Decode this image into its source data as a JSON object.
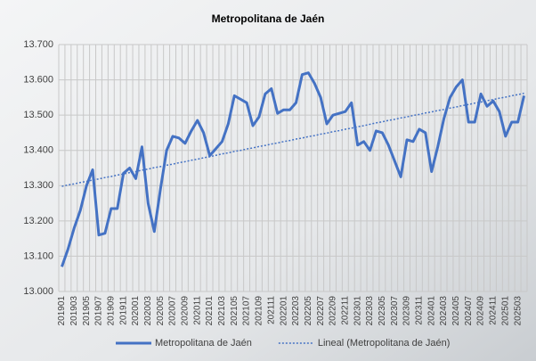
{
  "chart_data": {
    "type": "line",
    "title": "Metropolitana de Jaén",
    "categories": [
      "201901",
      null,
      "201903",
      null,
      "201905",
      null,
      "201907",
      null,
      "201909",
      null,
      "201911",
      null,
      "202001",
      null,
      "202003",
      null,
      "202005",
      null,
      "202007",
      null,
      "202009",
      null,
      "202011",
      null,
      "202101",
      null,
      "202103",
      null,
      "202105",
      null,
      "202107",
      null,
      "202109",
      null,
      "202111",
      null,
      "202201",
      null,
      "202203",
      null,
      "202205",
      null,
      "202207",
      null,
      "202209",
      null,
      "202211",
      null,
      "202301",
      null,
      "202303",
      null,
      "202305",
      null,
      "202307",
      null,
      "202309",
      null,
      "202311",
      null,
      "202401",
      null,
      "202403",
      null,
      "202405",
      null,
      "202407",
      null,
      "202409",
      null,
      "202411",
      null,
      "202501",
      null,
      "202503",
      null
    ],
    "series": [
      {
        "name": "Metropolitana de Jaén",
        "color": "#4472c4",
        "style": "solid",
        "values": [
          13070,
          13120,
          13180,
          13230,
          13300,
          13345,
          13160,
          13165,
          13235,
          13235,
          13335,
          13350,
          13320,
          13410,
          13250,
          13170,
          13290,
          13400,
          13440,
          13435,
          13420,
          13455,
          13485,
          13450,
          13385,
          13405,
          13425,
          13475,
          13555,
          13545,
          13535,
          13470,
          13495,
          13560,
          13575,
          13505,
          13515,
          13515,
          13535,
          13615,
          13620,
          13590,
          13550,
          13475,
          13500,
          13505,
          13510,
          13535,
          13415,
          13425,
          13400,
          13455,
          13450,
          13415,
          13370,
          13325,
          13430,
          13425,
          13460,
          13450,
          13340,
          13410,
          13490,
          13550,
          13580,
          13600,
          13480,
          13480,
          13560,
          13525,
          13540,
          13510,
          13440,
          13480,
          13480,
          13555
        ]
      },
      {
        "name": "Lineal (Metropolitana de Jaén)",
        "color": "#4472c4",
        "style": "dotted",
        "values": [
          13298,
          13302,
          13305,
          13309,
          13312,
          13316,
          13319,
          13323,
          13326,
          13330,
          13333,
          13337,
          13340,
          13344,
          13347,
          13351,
          13354,
          13358,
          13361,
          13365,
          13368,
          13372,
          13375,
          13379,
          13382,
          13386,
          13390,
          13393,
          13397,
          13400,
          13404,
          13407,
          13411,
          13414,
          13418,
          13421,
          13425,
          13428,
          13432,
          13435,
          13439,
          13442,
          13446,
          13449,
          13453,
          13456,
          13460,
          13463,
          13467,
          13470,
          13474,
          13478,
          13481,
          13485,
          13488,
          13492,
          13495,
          13499,
          13502,
          13506,
          13509,
          13513,
          13516,
          13520,
          13523,
          13527,
          13530,
          13534,
          13537,
          13541,
          13544,
          13548,
          13551,
          13555,
          13558,
          13562
        ]
      }
    ],
    "ylim": [
      13000,
      13700
    ],
    "yticks": [
      {
        "value": 13000,
        "label": "13.000"
      },
      {
        "value": 13100,
        "label": "13.100"
      },
      {
        "value": 13200,
        "label": "13.200"
      },
      {
        "value": 13300,
        "label": "13.300"
      },
      {
        "value": 13400,
        "label": "13.400"
      },
      {
        "value": 13500,
        "label": "13.500"
      },
      {
        "value": 13600,
        "label": "13.600"
      },
      {
        "value": 13700,
        "label": "13.700"
      }
    ],
    "grid": true,
    "legend": "bottom"
  }
}
